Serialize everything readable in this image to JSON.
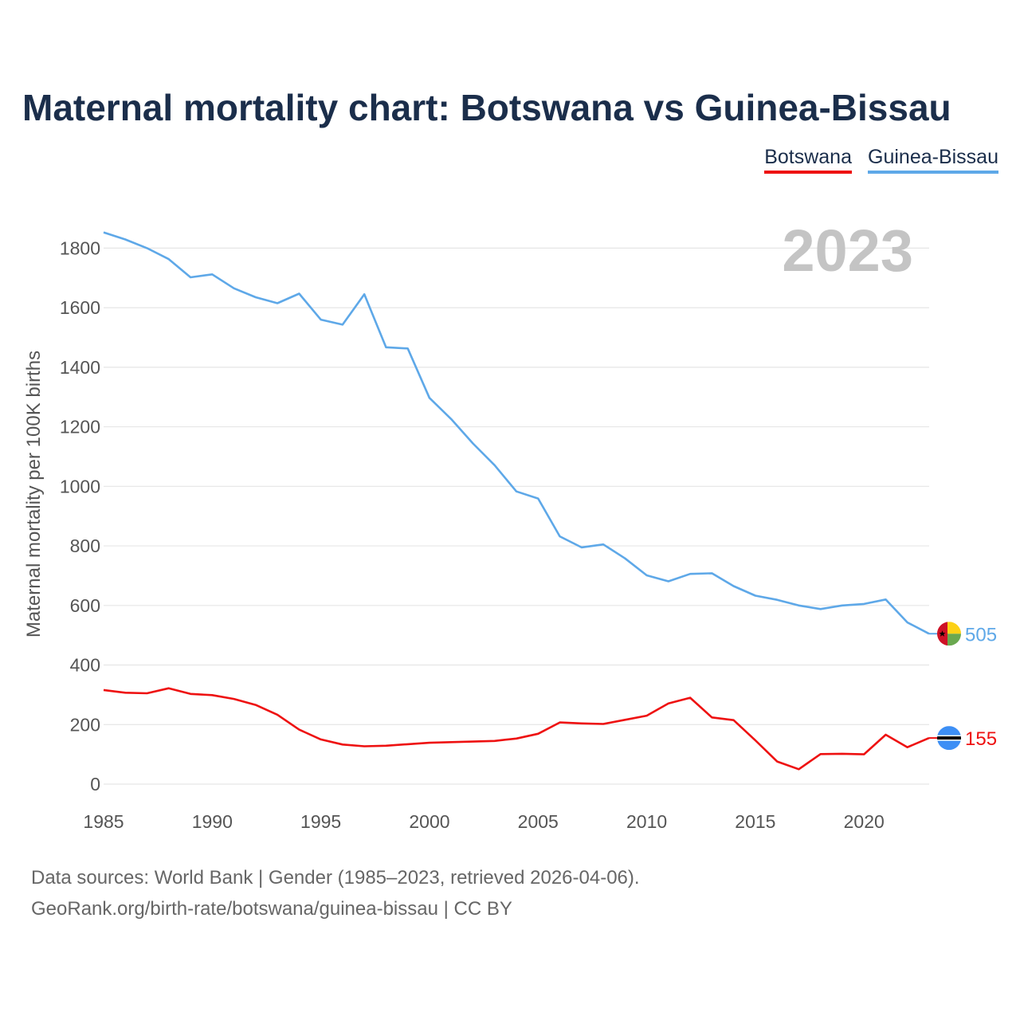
{
  "chart_data": {
    "type": "line",
    "title": "Maternal mortality chart: Botswana vs Guinea-Bissau",
    "ylabel": "Maternal mortality per 100K births",
    "xlabel": "",
    "year_label": "2023",
    "xlim": [
      1985,
      2023
    ],
    "ylim": [
      0,
      1900
    ],
    "x_ticks": [
      1985,
      1990,
      1995,
      2000,
      2005,
      2010,
      2015,
      2020
    ],
    "y_ticks": [
      0,
      200,
      400,
      600,
      800,
      1000,
      1200,
      1400,
      1600,
      1800
    ],
    "grid": true,
    "legend": "top-right",
    "x": [
      1985,
      1986,
      1987,
      1988,
      1989,
      1990,
      1991,
      1992,
      1993,
      1994,
      1995,
      1996,
      1997,
      1998,
      1999,
      2000,
      2001,
      2002,
      2003,
      2004,
      2005,
      2006,
      2007,
      2008,
      2009,
      2010,
      2011,
      2012,
      2013,
      2014,
      2015,
      2016,
      2017,
      2018,
      2019,
      2020,
      2021,
      2022,
      2023
    ],
    "series": [
      {
        "name": "Botswana",
        "color": "#ee1111",
        "end_label": "155",
        "values": [
          316,
          307,
          305,
          322,
          303,
          299,
          286,
          266,
          233,
          183,
          150,
          133,
          127,
          129,
          134,
          139,
          141,
          143,
          145,
          153,
          169,
          207,
          204,
          202,
          216,
          230,
          271,
          290,
          224,
          215,
          147,
          76,
          50,
          101,
          102,
          100,
          166,
          124,
          155
        ]
      },
      {
        "name": "Guinea-Bissau",
        "color": "#5ea8e8",
        "end_label": "505",
        "values": [
          1853,
          1829,
          1800,
          1763,
          1702,
          1712,
          1665,
          1635,
          1615,
          1647,
          1560,
          1543,
          1645,
          1467,
          1463,
          1297,
          1226,
          1144,
          1071,
          983,
          959,
          832,
          795,
          805,
          758,
          701,
          681,
          706,
          708,
          665,
          633,
          619,
          600,
          588,
          600,
          605,
          620,
          543,
          505
        ]
      }
    ]
  },
  "legend": {
    "items": [
      "Botswana",
      "Guinea-Bissau"
    ]
  },
  "footer": {
    "line1": "Data sources: World Bank | Gender (1985–2023, retrieved 2026-04-06).",
    "line2": "GeoRank.org/birth-rate/botswana/guinea-bissau | CC BY"
  }
}
